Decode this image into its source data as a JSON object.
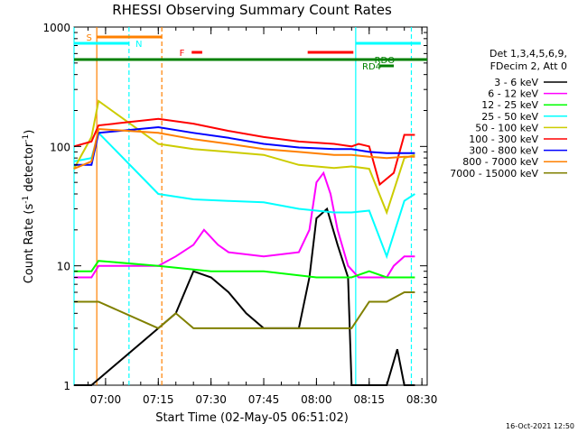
{
  "chart_data": {
    "type": "line",
    "title": "RHESSI Observing Summary Count Rates",
    "xlabel": "Start Time (02-May-05 06:51:02)",
    "ylabel": "Count Rate (s⁻¹ detector⁻¹)",
    "ylabel_main": "Count Rate (s",
    "ylabel_sup1": "-1",
    "ylabel_mid": " detector",
    "ylabel_sup2": "-1",
    "ylabel_end": ")",
    "footer": "16-Oct-2021 12:50",
    "y_scale": "log",
    "ylim": [
      1,
      1000
    ],
    "xlim": [
      "06:51:02",
      "08:31:30"
    ],
    "grid": false,
    "legend_placement": "right",
    "x_ticks": [
      {
        "t": "07:00",
        "label": "07:00"
      },
      {
        "t": "07:15",
        "label": "07:15"
      },
      {
        "t": "07:30",
        "label": "07:30"
      },
      {
        "t": "07:45",
        "label": "07:45"
      },
      {
        "t": "08:00",
        "label": "08:00"
      },
      {
        "t": "08:15",
        "label": "08:15"
      },
      {
        "t": "08:30",
        "label": "08:30"
      }
    ],
    "y_ticks": [
      {
        "v": 1,
        "label": "1"
      },
      {
        "v": 10,
        "label": "10"
      },
      {
        "v": 100,
        "label": "100"
      },
      {
        "v": 1000,
        "label": "1000"
      }
    ],
    "legend": {
      "header": [
        "Det 1,3,4,5,6,9,",
        "FDecim 2, Att 0"
      ]
    },
    "series": [
      {
        "name": "3 - 6 keV",
        "color": "#000000",
        "x": [
          "06:51",
          "06:56",
          "07:15",
          "07:20",
          "07:25",
          "07:30",
          "07:35",
          "07:40",
          "07:45",
          "07:50",
          "07:55",
          "07:58",
          "08:00",
          "08:03",
          "08:06",
          "08:09",
          "08:10",
          "08:15",
          "08:20",
          "08:23",
          "08:25",
          "08:28"
        ],
        "y": [
          1,
          1,
          3,
          4,
          9,
          8,
          6,
          4,
          3,
          3,
          3,
          8,
          25,
          30,
          15,
          8,
          1,
          1,
          1,
          2,
          1,
          1
        ]
      },
      {
        "name": "6 - 12 keV",
        "color": "#ff00ff",
        "x": [
          "06:51",
          "06:56",
          "06:58",
          "07:15",
          "07:20",
          "07:25",
          "07:28",
          "07:32",
          "07:35",
          "07:45",
          "07:55",
          "07:58",
          "08:00",
          "08:02",
          "08:04",
          "08:06",
          "08:09",
          "08:12",
          "08:15",
          "08:20",
          "08:22",
          "08:25",
          "08:28"
        ],
        "y": [
          8,
          8,
          10,
          10,
          12,
          15,
          20,
          15,
          13,
          12,
          13,
          20,
          50,
          60,
          40,
          20,
          10,
          8,
          8,
          8,
          10,
          12,
          12
        ]
      },
      {
        "name": "12 - 25 keV",
        "color": "#00ff00",
        "x": [
          "06:51",
          "06:56",
          "06:58",
          "07:15",
          "07:30",
          "07:45",
          "08:00",
          "08:05",
          "08:10",
          "08:15",
          "08:20",
          "08:25",
          "08:28"
        ],
        "y": [
          9,
          9,
          11,
          10,
          9,
          9,
          8,
          8,
          8,
          9,
          8,
          8,
          8
        ]
      },
      {
        "name": "25 - 50 keV",
        "color": "#00ffff",
        "x": [
          "06:51",
          "06:56",
          "06:58",
          "07:15",
          "07:25",
          "07:35",
          "07:45",
          "07:55",
          "08:05",
          "08:10",
          "08:15",
          "08:20",
          "08:25",
          "08:28"
        ],
        "y": [
          75,
          80,
          130,
          40,
          36,
          35,
          34,
          30,
          28,
          28,
          29,
          12,
          35,
          40
        ]
      },
      {
        "name": "50 - 100 keV",
        "color": "#cccc00",
        "x": [
          "06:51",
          "06:56",
          "06:58",
          "07:15",
          "07:25",
          "07:35",
          "07:45",
          "07:55",
          "08:05",
          "08:10",
          "08:15",
          "08:20",
          "08:25",
          "08:28"
        ],
        "y": [
          65,
          120,
          240,
          105,
          95,
          90,
          85,
          70,
          66,
          68,
          65,
          28,
          80,
          85
        ]
      },
      {
        "name": "100 - 300 keV",
        "color": "#ff0000",
        "x": [
          "06:51",
          "06:56",
          "06:58",
          "07:15",
          "07:25",
          "07:35",
          "07:45",
          "07:55",
          "08:05",
          "08:10",
          "08:12",
          "08:15",
          "08:18",
          "08:22",
          "08:25",
          "08:28"
        ],
        "y": [
          100,
          110,
          150,
          170,
          155,
          135,
          120,
          110,
          105,
          100,
          105,
          100,
          48,
          60,
          125,
          125
        ]
      },
      {
        "name": "300 - 800 keV",
        "color": "#0000ff",
        "x": [
          "06:51",
          "06:56",
          "06:58",
          "07:15",
          "07:25",
          "07:35",
          "07:45",
          "07:55",
          "08:05",
          "08:10",
          "08:15",
          "08:20",
          "08:25",
          "08:28"
        ],
        "y": [
          70,
          70,
          130,
          145,
          130,
          118,
          105,
          98,
          95,
          95,
          90,
          88,
          88,
          88
        ]
      },
      {
        "name": "800 - 7000 keV",
        "color": "#ff8000",
        "x": [
          "06:51",
          "06:56",
          "06:58",
          "07:15",
          "07:25",
          "07:35",
          "07:45",
          "07:55",
          "08:05",
          "08:10",
          "08:15",
          "08:20",
          "08:25",
          "08:28"
        ],
        "y": [
          65,
          75,
          140,
          130,
          115,
          105,
          95,
          90,
          85,
          85,
          82,
          80,
          82,
          82
        ]
      },
      {
        "name": "7000 - 15000 keV",
        "color": "#808000",
        "x": [
          "06:51",
          "06:56",
          "06:58",
          "07:15",
          "07:20",
          "07:25",
          "07:30",
          "07:40",
          "07:50",
          "08:00",
          "08:05",
          "08:10",
          "08:15",
          "08:20",
          "08:25",
          "08:28"
        ],
        "y": [
          5,
          5,
          5,
          3,
          4,
          3,
          3,
          3,
          3,
          3,
          3,
          3,
          5,
          5,
          6,
          6
        ]
      }
    ],
    "vertical_lines": [
      {
        "t": "06:51:02",
        "color": "#00ffff",
        "dash": false
      },
      {
        "t": "06:57:30",
        "color": "#ff8000",
        "dash": false
      },
      {
        "t": "07:06:40",
        "color": "#00ffff",
        "dash": true
      },
      {
        "t": "07:16:00",
        "color": "#ff8000",
        "dash": true
      },
      {
        "t": "08:11:10",
        "color": "#00ffff",
        "dash": false
      },
      {
        "t": "08:27:00",
        "color": "#00ffff",
        "dash": true
      }
    ],
    "status_bars": [
      {
        "label": "S",
        "color": "#ff8000",
        "t0": "06:57:30",
        "t1": "07:16:00",
        "y": 41,
        "label_t": "06:54:30"
      },
      {
        "label": "N",
        "color": "#00ffff",
        "t0": "06:51:02",
        "t1": "07:06:40",
        "y": 48,
        "label_t": "07:08:30"
      },
      {
        "label": "F",
        "color": "#ff0000",
        "t0": "07:24:30",
        "t1": "07:27:30",
        "y": 58,
        "label_t": "07:21:00"
      },
      {
        "label": "",
        "color": "#ff0000",
        "t0": "07:57:30",
        "t1": "08:10:30",
        "y": 58,
        "label_t": ""
      },
      {
        "label": "",
        "color": "#00ffff",
        "t0": "08:11:10",
        "t1": "08:29:40",
        "y": 48,
        "label_t": ""
      },
      {
        "label": "RDO",
        "color": "#008000",
        "t0": "08:15:00",
        "t1": "08:29:30",
        "y": 66,
        "label_t": "08:16:30"
      },
      {
        "label": "RD4",
        "color": "#008000",
        "t0": "08:18:00",
        "t1": "08:22:00",
        "y": 73,
        "label_t": "08:13:00"
      }
    ],
    "green_bar": {
      "t0": "06:51:02",
      "t1": "08:31:30",
      "color": "#008000"
    }
  }
}
